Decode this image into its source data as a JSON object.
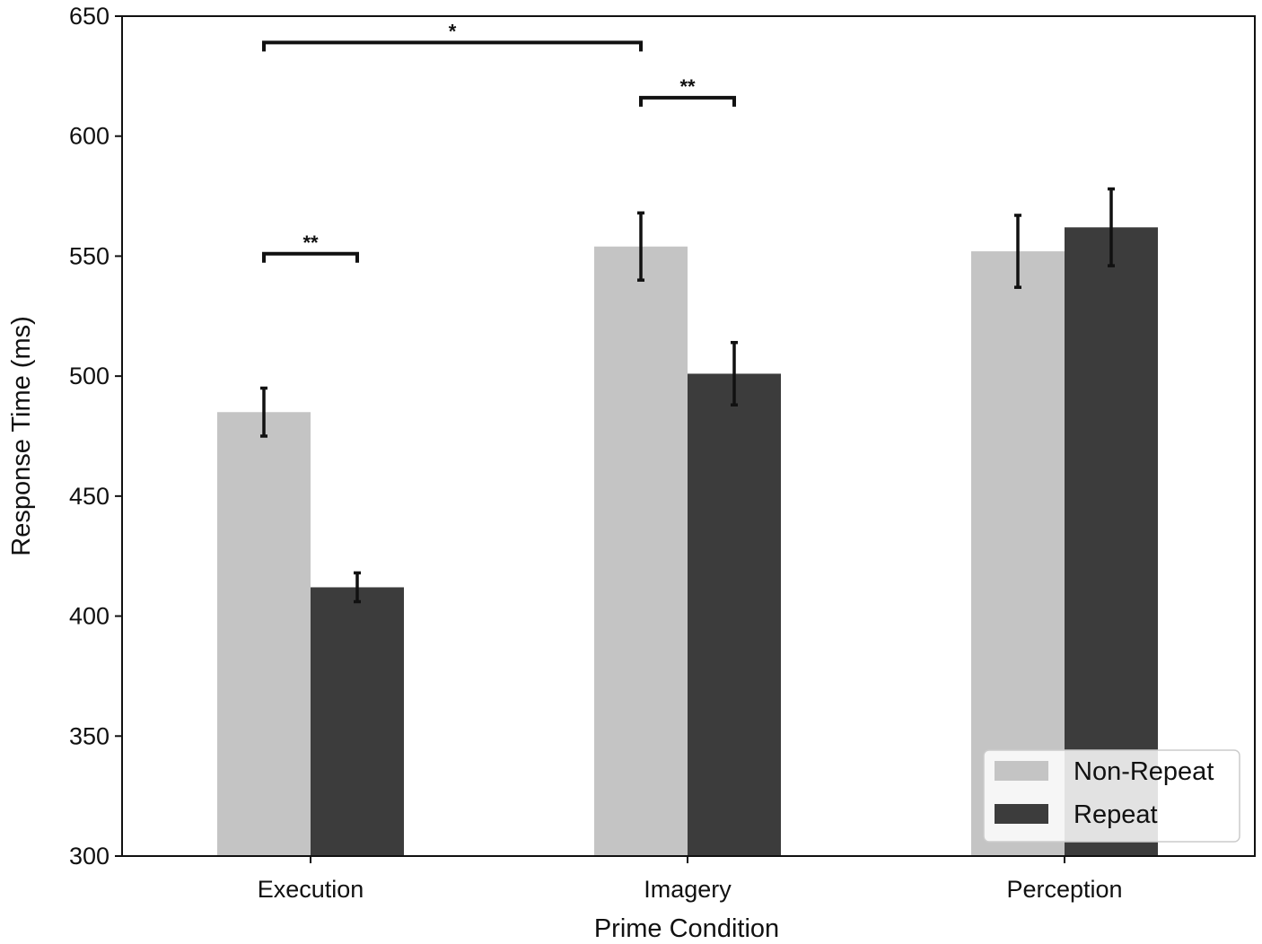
{
  "chart_data": {
    "type": "bar",
    "title": "",
    "xlabel": "Prime Condition",
    "ylabel": "Response Time (ms)",
    "categories": [
      "Execution",
      "Imagery",
      "Perception"
    ],
    "ylim": [
      300,
      650
    ],
    "yticks": [
      300,
      350,
      400,
      450,
      500,
      550,
      600,
      650
    ],
    "ytick_labels": [
      "300",
      "350",
      "400",
      "450",
      "500",
      "550",
      "600",
      "650"
    ],
    "grid": false,
    "legend_position": "lower-right",
    "series": [
      {
        "name": "Non-Repeat",
        "color": "#c4c4c4",
        "values": [
          485,
          554,
          552
        ],
        "errors": [
          10,
          14,
          15
        ]
      },
      {
        "name": "Repeat",
        "color": "#3c3c3c",
        "values": [
          412,
          501,
          562
        ],
        "errors": [
          6,
          13,
          16
        ]
      }
    ],
    "significance": [
      {
        "label": "**",
        "from": [
          0,
          0
        ],
        "to": [
          0,
          1
        ],
        "y": 551
      },
      {
        "label": "**",
        "from": [
          1,
          0
        ],
        "to": [
          1,
          1
        ],
        "y": 616
      },
      {
        "label": "*",
        "from": [
          0,
          0
        ],
        "to": [
          1,
          0
        ],
        "y": 639
      }
    ]
  }
}
